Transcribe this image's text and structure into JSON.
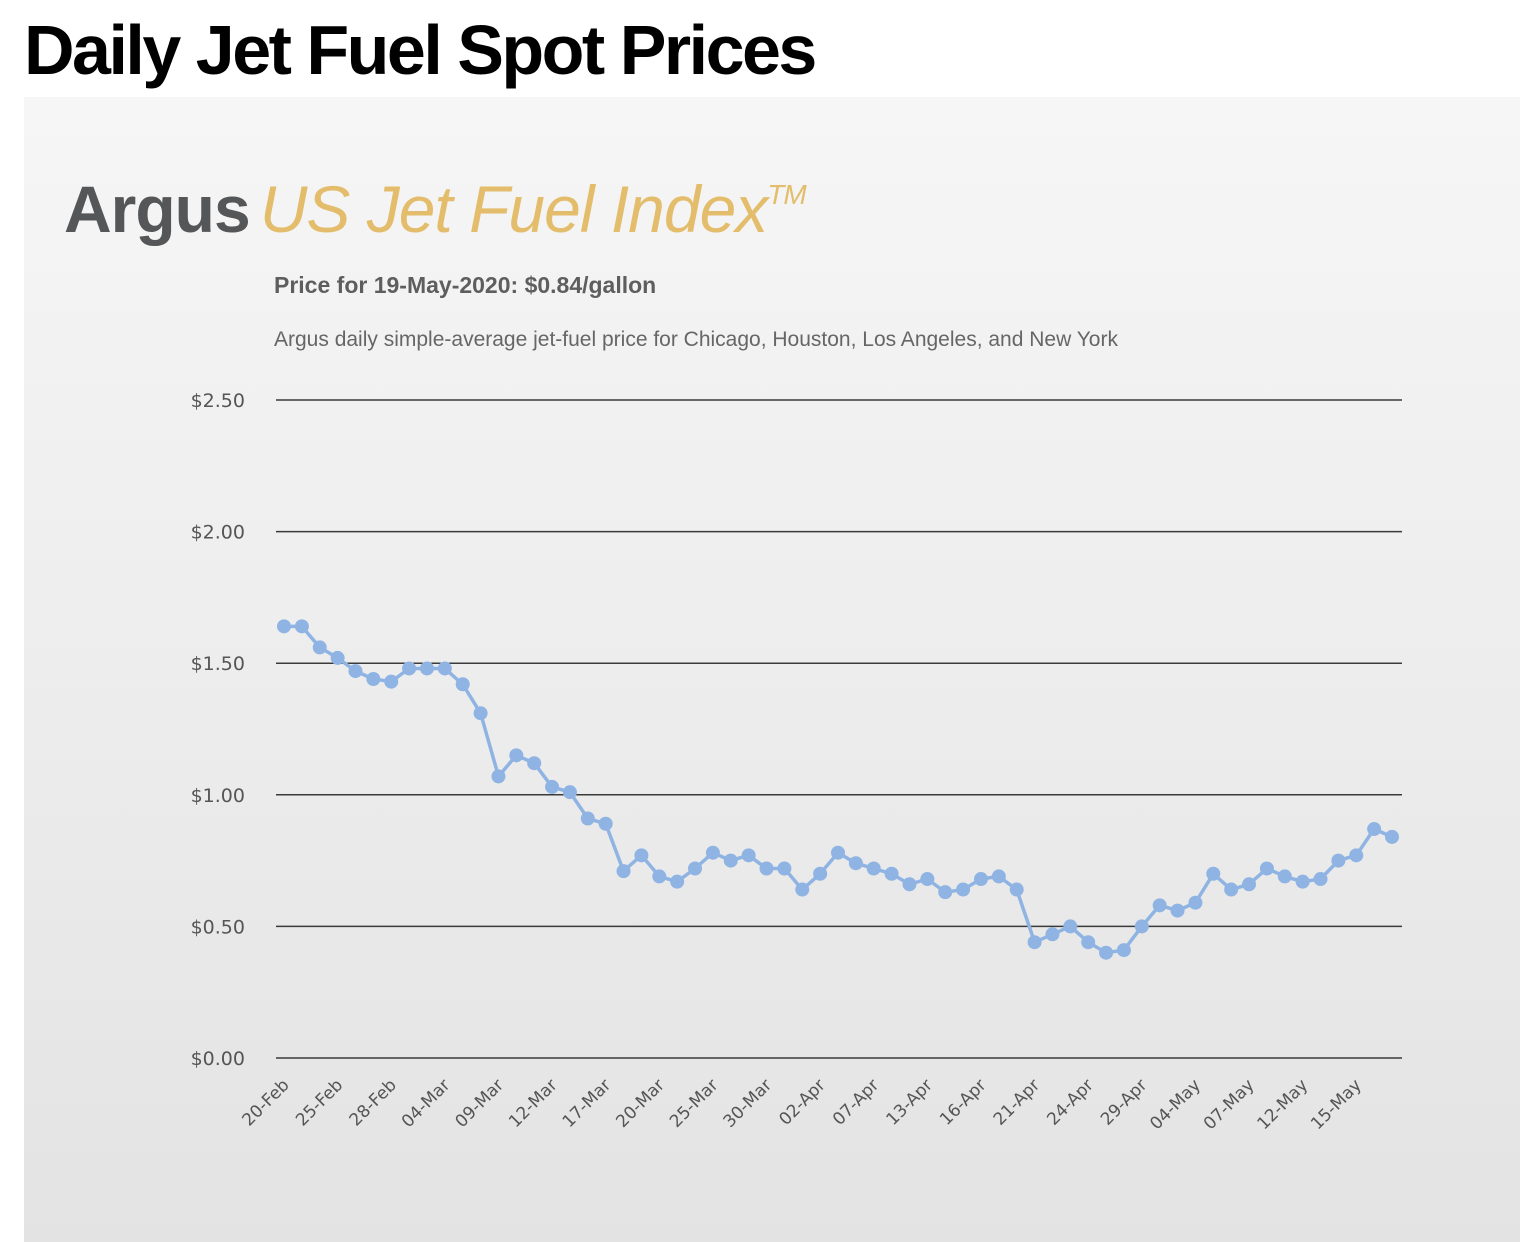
{
  "page": {
    "heading": "Daily Jet Fuel Spot Prices"
  },
  "panel": {
    "brand_name": "Argus",
    "product_name": "US Jet Fuel Index",
    "trademark": "TM",
    "price_line": "Price for 19-May-2020: $0.84/gallon",
    "description": "Argus daily simple-average jet-fuel price for Chicago, Houston, Los Angeles, and New York"
  },
  "colors": {
    "line": "#8fb4e3",
    "brand_product": "#e3bd6b",
    "brand_name": "#555657",
    "gridline": "#3a3a3a"
  },
  "chart_data": {
    "type": "line",
    "title": "",
    "xlabel": "",
    "ylabel": "",
    "ylim": [
      0,
      2.5
    ],
    "y_ticks": [
      0,
      0.5,
      1.0,
      1.5,
      2.0,
      2.5
    ],
    "y_tick_labels": [
      "$0.00",
      "$0.50",
      "$1.00",
      "$1.50",
      "$2.00",
      "$2.50"
    ],
    "x_tick_labels": [
      "20-Feb",
      "25-Feb",
      "28-Feb",
      "04-Mar",
      "09-Mar",
      "12-Mar",
      "17-Mar",
      "20-Mar",
      "25-Mar",
      "30-Mar",
      "02-Apr",
      "07-Apr",
      "13-Apr",
      "16-Apr",
      "21-Apr",
      "24-Apr",
      "29-Apr",
      "04-May",
      "07-May",
      "12-May",
      "15-May"
    ],
    "grid": "horizontal",
    "legend": "none",
    "series": [
      {
        "values": [
          1.64,
          1.64,
          1.56,
          1.52,
          1.47,
          1.44,
          1.43,
          1.48,
          1.48,
          1.48,
          1.42,
          1.31,
          1.07,
          1.15,
          1.12,
          1.03,
          1.01,
          0.91,
          0.89,
          0.71,
          0.77,
          0.69,
          0.67,
          0.72,
          0.78,
          0.75,
          0.77,
          0.72,
          0.72,
          0.64,
          0.7,
          0.78,
          0.74,
          0.72,
          0.7,
          0.66,
          0.68,
          0.63,
          0.64,
          0.68,
          0.69,
          0.64,
          0.44,
          0.47,
          0.5,
          0.44,
          0.4,
          0.41,
          0.5,
          0.58,
          0.56,
          0.59,
          0.7,
          0.64,
          0.66,
          0.72,
          0.69,
          0.67,
          0.68,
          0.75,
          0.77,
          0.87,
          0.84
        ]
      }
    ]
  }
}
